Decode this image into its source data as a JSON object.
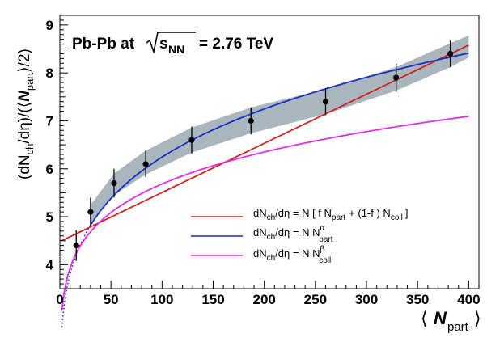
{
  "chart_data": {
    "type": "scatter",
    "annotation": {
      "system": "Pb-Pb at",
      "energy_symbol": "s",
      "energy_sub": "NN",
      "energy_value": "= 2.76 TeV"
    },
    "xaxis": {
      "range": [
        0,
        410
      ],
      "ticks": [
        0,
        50,
        100,
        150,
        200,
        250,
        300,
        350,
        400
      ],
      "tick_labels": [
        "0",
        "50",
        "100",
        "150",
        "200",
        "250",
        "300",
        "350",
        "400"
      ],
      "label_main": "N",
      "label_sub": "part",
      "label_open": "⟨",
      "label_close": "⟩"
    },
    "yaxis": {
      "range": [
        3.5,
        9.2
      ],
      "ticks": [
        4,
        5,
        6,
        7,
        8,
        9
      ],
      "tick_labels": [
        "4",
        "5",
        "6",
        "7",
        "8",
        "9"
      ],
      "label_prefix": "(dN",
      "label_sub": "ch",
      "label_middle": "/dη)/(⟨",
      "label_bold": "N",
      "label_sub2": "part",
      "label_suffix": "⟩/2)"
    },
    "data_points": [
      {
        "x": 16,
        "y": 4.4,
        "err": 0.32
      },
      {
        "x": 30,
        "y": 5.1,
        "err": 0.3
      },
      {
        "x": 53,
        "y": 5.7,
        "err": 0.3
      },
      {
        "x": 84,
        "y": 6.1,
        "err": 0.28
      },
      {
        "x": 129,
        "y": 6.6,
        "err": 0.28
      },
      {
        "x": 187,
        "y": 7.0,
        "err": 0.28
      },
      {
        "x": 260,
        "y": 7.4,
        "err": 0.28
      },
      {
        "x": 329,
        "y": 7.9,
        "err": 0.3
      },
      {
        "x": 382,
        "y": 8.4,
        "err": 0.28
      }
    ],
    "band": {
      "color": "#a9b6bd",
      "x": [
        30,
        53,
        84,
        129,
        187,
        260,
        329,
        382,
        400
      ],
      "lower": [
        4.85,
        5.45,
        5.88,
        6.34,
        6.74,
        7.14,
        7.63,
        8.12,
        8.32
      ],
      "upper": [
        5.25,
        5.9,
        6.38,
        6.86,
        7.28,
        7.66,
        8.12,
        8.62,
        8.78
      ]
    },
    "series": [
      {
        "name": "two-component",
        "color": "#d0221c",
        "model": "twocomp",
        "label_parts": {
          "a": "dN",
          "a_sub": "ch",
          "b": "/dη = N [ f N",
          "b_sub": "part",
          "c": "+ (1-f ) N",
          "c_sub": "coll",
          "d": "]"
        }
      },
      {
        "name": "power law Npart",
        "color": "#1a2fc4",
        "model": "powpart",
        "label_parts": {
          "a": "dN",
          "a_sub": "ch",
          "b": "/dη = N N",
          "b_sup": "α",
          "b_sub": "part"
        }
      },
      {
        "name": "power law Ncoll",
        "color": "#e22ce6",
        "model": "powcoll",
        "label_parts": {
          "a": "dN",
          "a_sub": "ch",
          "b": "/dη = N N",
          "b_sup": "β",
          "b_sub": "coll"
        }
      }
    ],
    "legend_position": "bottom-right"
  }
}
